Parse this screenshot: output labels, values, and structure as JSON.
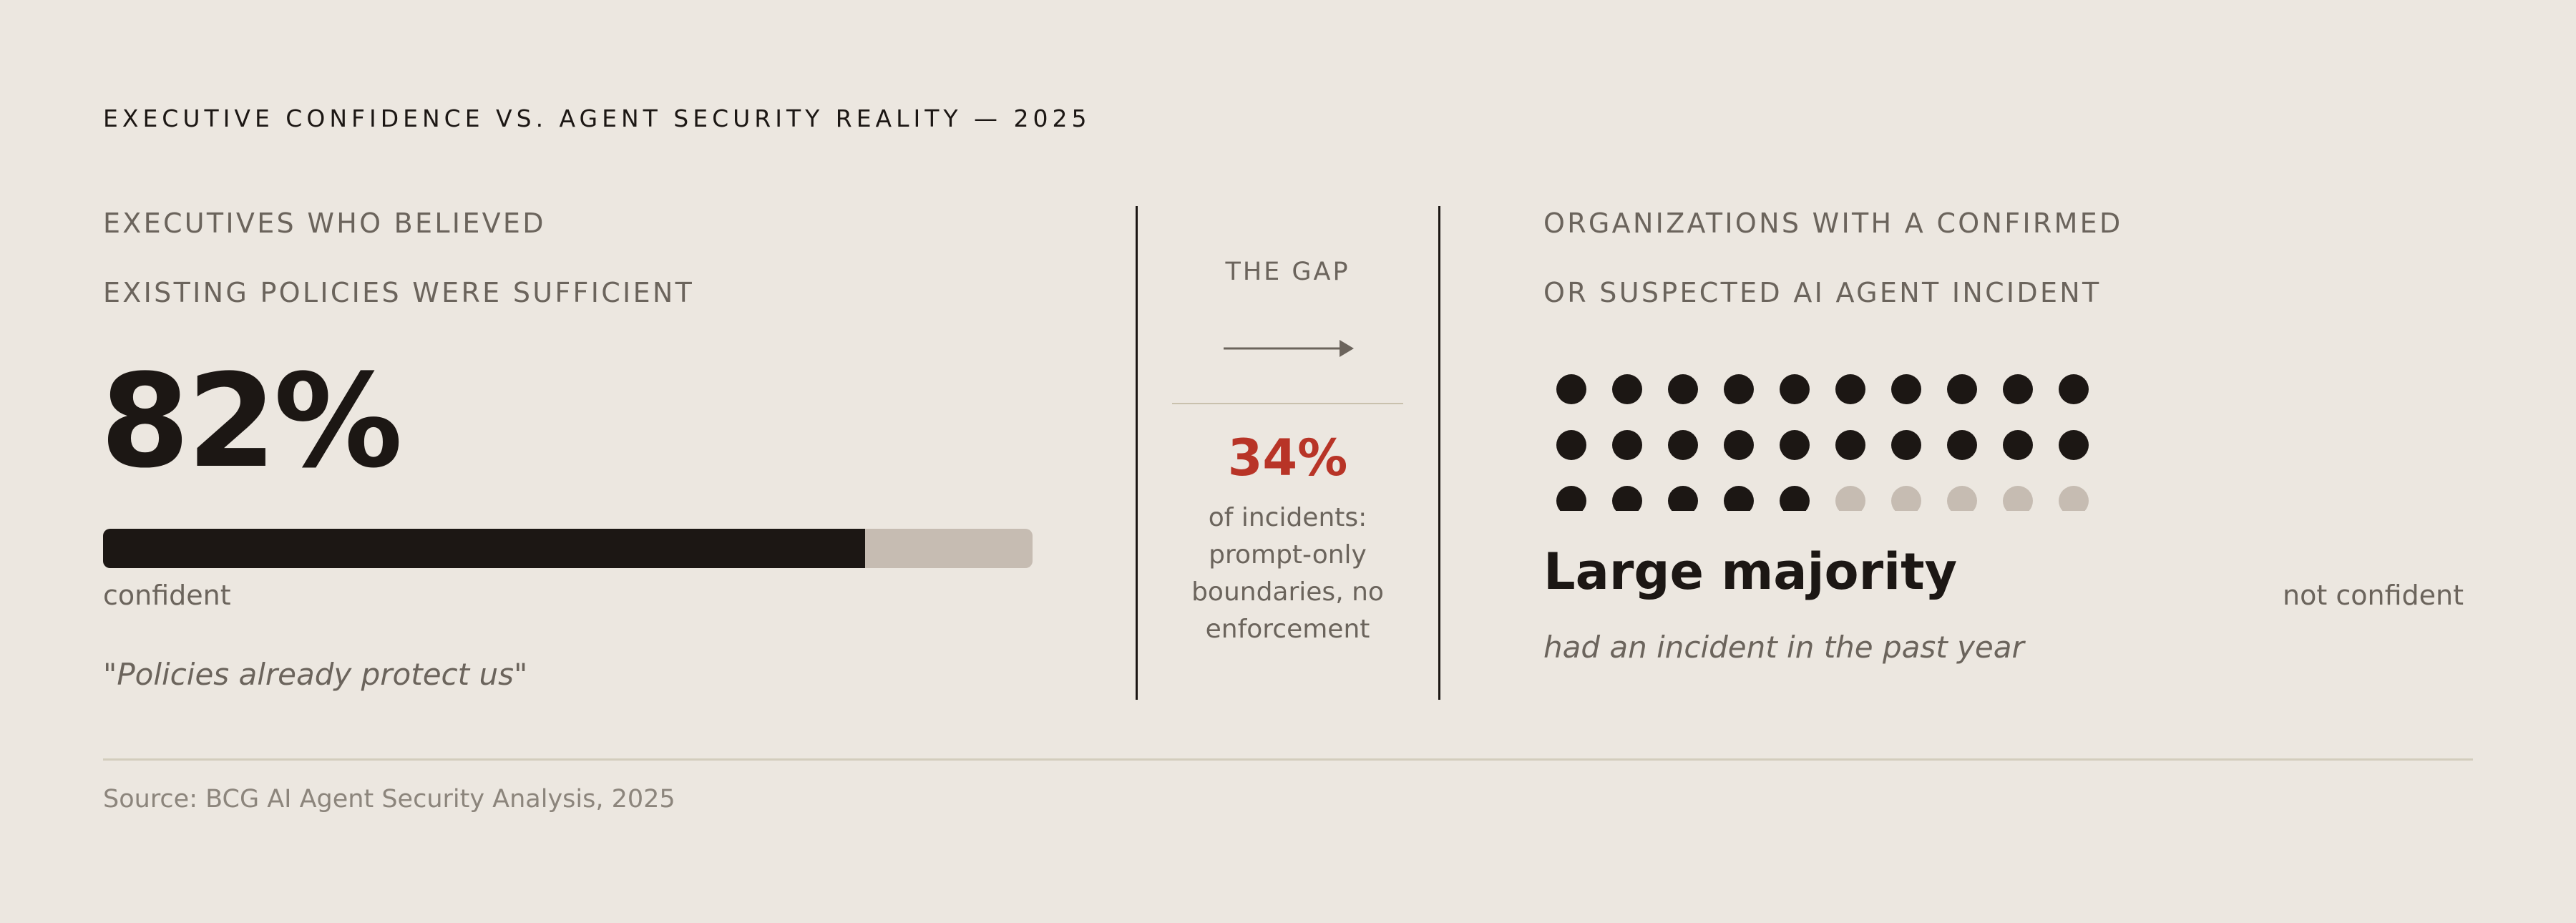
{
  "title": "EXECUTIVE CONFIDENCE VS. AGENT SECURITY REALITY — 2025",
  "left": {
    "label_line1": "EXECUTIVES WHO BELIEVED",
    "label_line2": "EXISTING POLICIES WERE SUFFICIENT",
    "percent_text": "82%",
    "confident_label": "confident",
    "not_confident_label": "not confident",
    "quote": "\"Policies already protect us\""
  },
  "gap": {
    "title": "THE GAP",
    "percent_text": "34%",
    "caption_lines": [
      "of incidents:",
      "prompt-only",
      "boundaries, no",
      "enforcement"
    ]
  },
  "right": {
    "label_line1": "ORGANIZATIONS WITH A CONFIRMED",
    "label_line2": "OR SUSPECTED AI AGENT INCIDENT",
    "headline": "Large majority",
    "subline": "had an incident in the past year"
  },
  "source": "Source: BCG AI Agent Security Analysis, 2025",
  "colors": {
    "background": "#ece7e0",
    "dark": "#1c1714",
    "muted": "#c6bcb2",
    "accent": "#b83427"
  },
  "chart_data": [
    {
      "type": "bar",
      "categories": [
        "confident",
        "not confident"
      ],
      "values": [
        82,
        18
      ],
      "unit": "%",
      "stacked": true,
      "orientation": "horizontal"
    },
    {
      "type": "waffle",
      "rows": 3,
      "columns": 10,
      "filled": 25,
      "total": 30
    }
  ]
}
